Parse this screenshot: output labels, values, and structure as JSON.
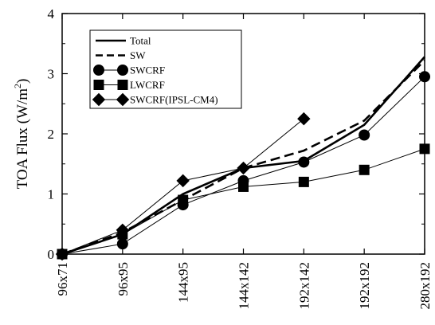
{
  "chart_data": {
    "type": "line",
    "categories": [
      "96x71",
      "96x95",
      "144x95",
      "144x142",
      "192x142",
      "192x192",
      "280x192"
    ],
    "ylabel": "TOA Flux (W/m²)",
    "ylabel_main": "TOA Flux (W/m",
    "ylabel_sup": "2",
    "ylabel_close": ")",
    "xlabel": "",
    "ylim": [
      0,
      4
    ],
    "yticks": [
      0,
      1,
      2,
      3,
      4
    ],
    "grid": false,
    "legend_position": "top-left",
    "series": [
      {
        "name": "Total",
        "marker": "none",
        "dash": "solid",
        "width": "thick",
        "values": [
          0,
          0.33,
          1.0,
          1.43,
          1.55,
          2.15,
          3.28
        ]
      },
      {
        "name": "SW",
        "marker": "none",
        "dash": "dashed",
        "width": "thick",
        "values": [
          0,
          0.36,
          0.9,
          1.43,
          1.72,
          2.22,
          3.22
        ]
      },
      {
        "name": "SWCRF",
        "marker": "circle",
        "dash": "solid",
        "width": "thin",
        "values": [
          0,
          0.17,
          0.82,
          1.22,
          1.53,
          1.98,
          2.95
        ]
      },
      {
        "name": "LWCRF",
        "marker": "square",
        "dash": "solid",
        "width": "thin",
        "values": [
          0,
          0.33,
          0.9,
          1.12,
          1.2,
          1.4,
          1.75
        ]
      },
      {
        "name": "SWCRF(IPSL-CM4)",
        "marker": "diamond",
        "dash": "solid",
        "width": "thin",
        "values": [
          0,
          0.4,
          1.22,
          1.43,
          2.25,
          null,
          null
        ]
      }
    ]
  }
}
